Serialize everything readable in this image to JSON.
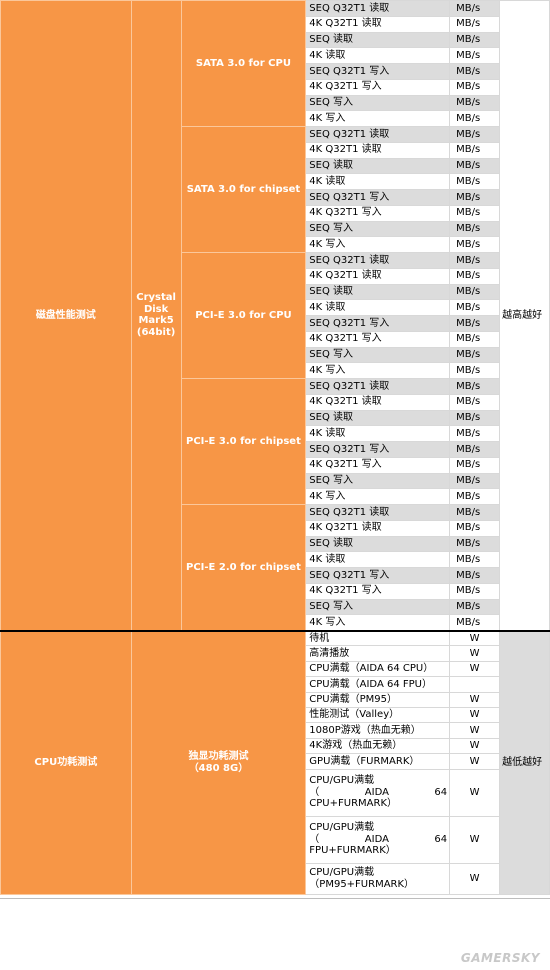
{
  "disk": {
    "section": "磁盘性能测试",
    "tool": [
      "Crystal",
      "Disk",
      "Mark5",
      "(64bit)"
    ],
    "verdict": "越高越好",
    "unit": "MB/s",
    "groups": [
      "SATA 3.0 for CPU",
      "SATA 3.0 for chipset",
      "PCI-E 3.0 for CPU",
      "PCI-E 3.0 for chipset",
      "PCI-E 2.0 for chipset"
    ],
    "items": [
      "SEQ Q32T1 读取",
      "4K Q32T1 读取",
      "SEQ 读取",
      "4K 读取",
      "SEQ Q32T1 写入",
      "4K Q32T1 写入",
      "SEQ 写入",
      "4K 写入"
    ]
  },
  "power": {
    "section": "CPU功耗测试",
    "tool": [
      "独显功耗测试",
      "（480 8G）"
    ],
    "verdict": "越低越好",
    "unit": "W",
    "items": [
      {
        "label": "待机",
        "unit": "W"
      },
      {
        "label": "高清播放",
        "unit": "W"
      },
      {
        "label": "CPU满载（AIDA 64 CPU）",
        "unit": "W"
      },
      {
        "label": "CPU满载（AIDA 64 FPU）",
        "unit": ""
      },
      {
        "label": "CPU满载（PM95）",
        "unit": "W"
      },
      {
        "label": "性能测试（Valley）",
        "unit": "W"
      },
      {
        "label": "1080P游戏（热血无赖）",
        "unit": "W"
      },
      {
        "label": "4K游戏（热血无赖）",
        "unit": "W"
      },
      {
        "label": "GPU满载（FURMARK）",
        "unit": "W"
      }
    ],
    "multi": [
      {
        "lines": [
          "CPU/GPU满载",
          "（",
          "AIDA",
          "64",
          "CPU+FURMARK）"
        ],
        "unit": "W"
      },
      {
        "lines": [
          "CPU/GPU满载",
          "（",
          "AIDA",
          "64",
          "FPU+FURMARK）"
        ],
        "unit": "W"
      },
      {
        "lines": [
          "CPU/GPU满载",
          "（PM95+FURMARK）"
        ],
        "unit": "W"
      }
    ]
  },
  "watermark": "GAMERSKY"
}
